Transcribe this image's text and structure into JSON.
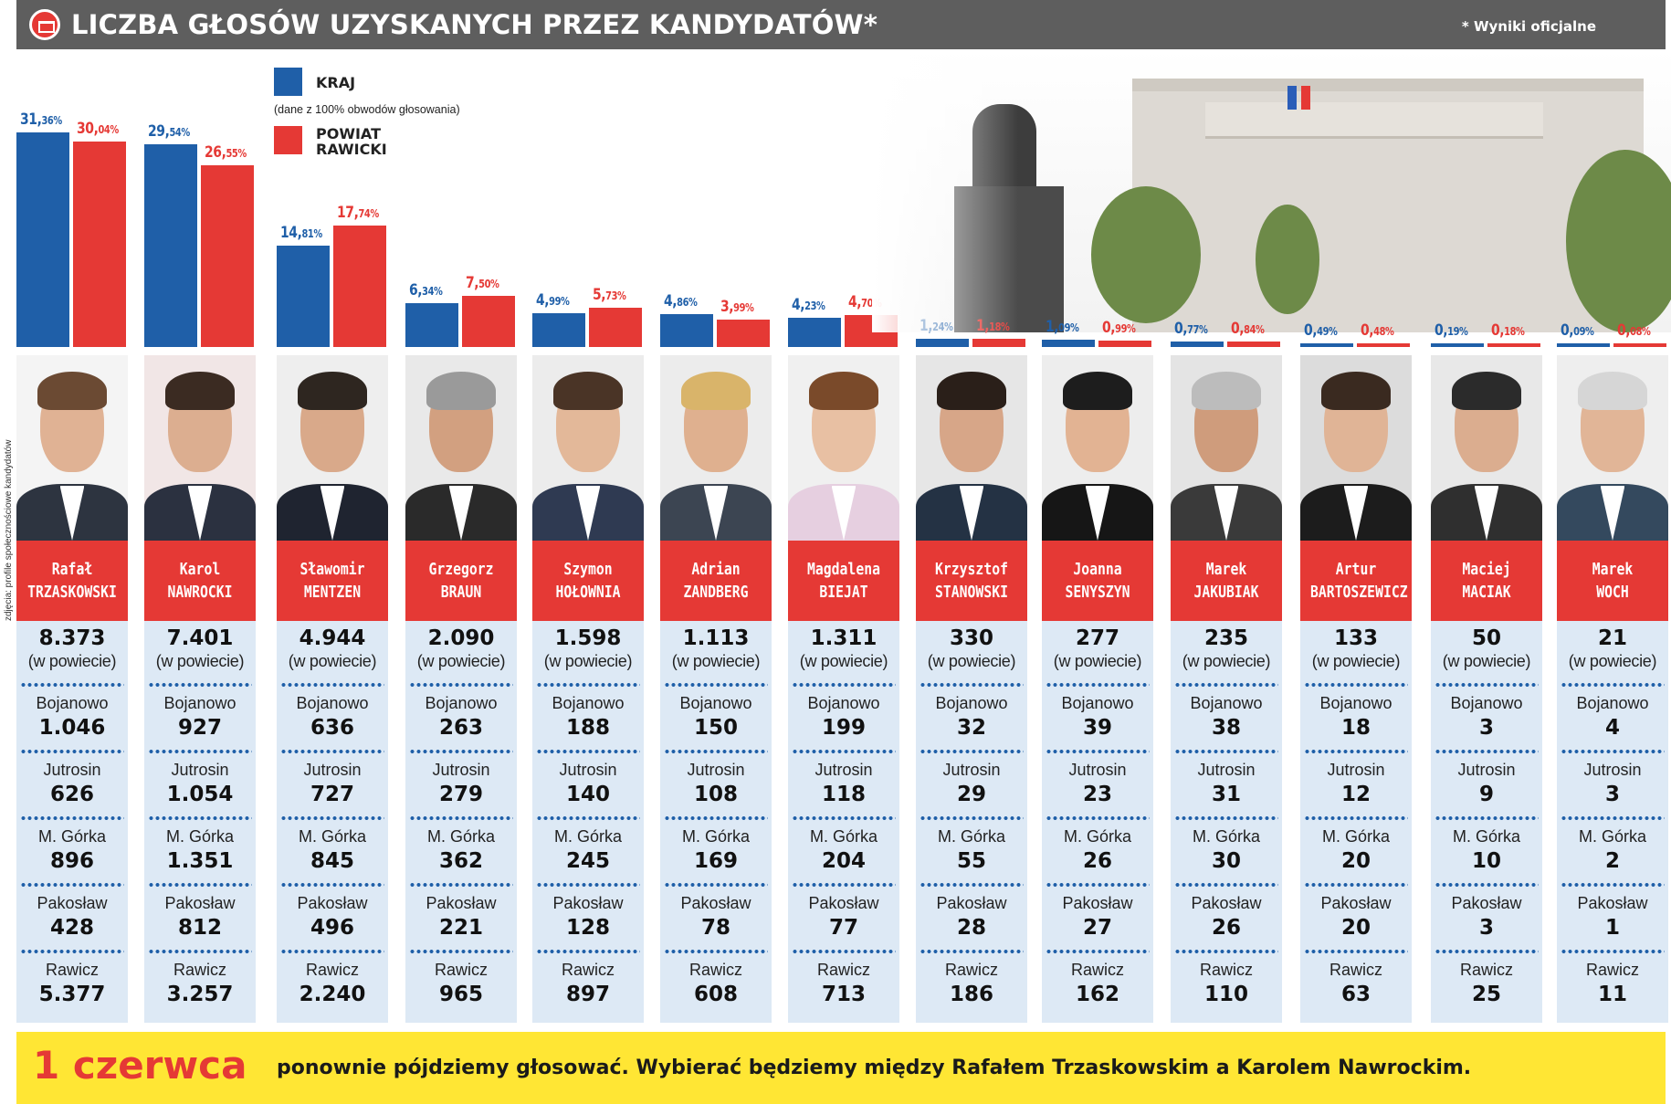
{
  "header": {
    "title": "LICZBA GŁOSÓW UZYSKANYCH PRZEZ KANDYDATÓW*",
    "note": "* Wyniki oficjalne",
    "icon": "ballot-box-icon"
  },
  "legend": {
    "kraj_label": "KRAJ",
    "kraj_note": "(dane z 100% obwodów głosowania)",
    "powiat_label": "POWIAT\nRAWICKI"
  },
  "credit": "zdjęcia: profile społecznościowe kandydatów",
  "row_labels": {
    "total_suffix": "(w powiecie)",
    "places": [
      "Bojanowo",
      "Jutrosin",
      "M. Górka",
      "Pakosław",
      "Rawicz"
    ]
  },
  "colors": {
    "kraj": "#1f5fa8",
    "powiat": "#e53935",
    "data_bg": "#dde9f5",
    "footer_bg": "#ffe634"
  },
  "chart_data": {
    "type": "bar",
    "categories": [
      "Rafał TRZASKOWSKI",
      "Karol NAWROCKI",
      "Sławomir MENTZEN",
      "Grzegorz BRAUN",
      "Szymon HOŁOWNIA",
      "Adrian ZANDBERG",
      "Magdalena BIEJAT",
      "Krzysztof STANOWSKI",
      "Joanna SENYSZYN",
      "Marek JAKUBIAK",
      "Artur BARTOSZEWICZ",
      "Maciej MACIAK",
      "Marek WOCH"
    ],
    "series": [
      {
        "name": "KRAJ",
        "values": [
          31.36,
          29.54,
          14.81,
          6.34,
          4.99,
          4.86,
          4.23,
          1.24,
          1.09,
          0.77,
          0.49,
          0.19,
          0.09
        ],
        "labels": [
          "31,36%",
          "29,54%",
          "14,81%",
          "6,34%",
          "4,99%",
          "4,86%",
          "4,23%",
          "1,24%",
          "1,09%",
          "0,77%",
          "0,49%",
          "0,19%",
          "0,09%"
        ]
      },
      {
        "name": "POWIAT RAWICKI",
        "values": [
          30.04,
          26.55,
          17.74,
          7.5,
          5.73,
          3.99,
          4.7,
          1.18,
          0.99,
          0.84,
          0.48,
          0.18,
          0.08
        ],
        "labels": [
          "30,04%",
          "26,55%",
          "17,74%",
          "7,50%",
          "5,73%",
          "3,99%",
          "4,70%",
          "1,18%",
          "0,99%",
          "0,84%",
          "0,48%",
          "0,18%",
          "0,08%"
        ]
      }
    ],
    "ylim": [
      0,
      32
    ],
    "legend_position": "top-left"
  },
  "candidates": [
    {
      "first": "Rafał",
      "last": "TRZASKOWSKI",
      "total": "8.373",
      "towns": [
        "1.046",
        "626",
        "896",
        "428",
        "5.377"
      ]
    },
    {
      "first": "Karol",
      "last": "NAWROCKI",
      "total": "7.401",
      "towns": [
        "927",
        "1.054",
        "1.351",
        "812",
        "3.257"
      ]
    },
    {
      "first": "Sławomir",
      "last": "MENTZEN",
      "total": "4.944",
      "towns": [
        "636",
        "727",
        "845",
        "496",
        "2.240"
      ]
    },
    {
      "first": "Grzegorz",
      "last": "BRAUN",
      "total": "2.090",
      "towns": [
        "263",
        "279",
        "362",
        "221",
        "965"
      ]
    },
    {
      "first": "Szymon",
      "last": "HOŁOWNIA",
      "total": "1.598",
      "towns": [
        "188",
        "140",
        "245",
        "128",
        "897"
      ]
    },
    {
      "first": "Adrian",
      "last": "ZANDBERG",
      "total": "1.113",
      "towns": [
        "150",
        "108",
        "169",
        "78",
        "608"
      ]
    },
    {
      "first": "Magdalena",
      "last": "BIEJAT",
      "total": "1.311",
      "towns": [
        "199",
        "118",
        "204",
        "77",
        "713"
      ]
    },
    {
      "first": "Krzysztof",
      "last": "STANOWSKI",
      "total": "330",
      "towns": [
        "32",
        "29",
        "55",
        "28",
        "186"
      ]
    },
    {
      "first": "Joanna",
      "last": "SENYSZYN",
      "total": "277",
      "towns": [
        "39",
        "23",
        "26",
        "27",
        "162"
      ]
    },
    {
      "first": "Marek",
      "last": "JAKUBIAK",
      "total": "235",
      "towns": [
        "38",
        "31",
        "30",
        "26",
        "110"
      ]
    },
    {
      "first": "Artur",
      "last": "BARTOSZEWICZ",
      "total": "133",
      "towns": [
        "18",
        "12",
        "20",
        "20",
        "63"
      ]
    },
    {
      "first": "Maciej",
      "last": "MACIAK",
      "total": "50",
      "towns": [
        "3",
        "9",
        "10",
        "3",
        "25"
      ]
    },
    {
      "first": "Marek",
      "last": "WOCH",
      "total": "21",
      "towns": [
        "4",
        "3",
        "2",
        "1",
        "11"
      ]
    }
  ],
  "footer": {
    "date": "1 czerwca",
    "text": "ponownie pójdziemy głosować. Wybierać będziemy między Rafałem Trzaskowskim a Karolem Nawrockim."
  }
}
